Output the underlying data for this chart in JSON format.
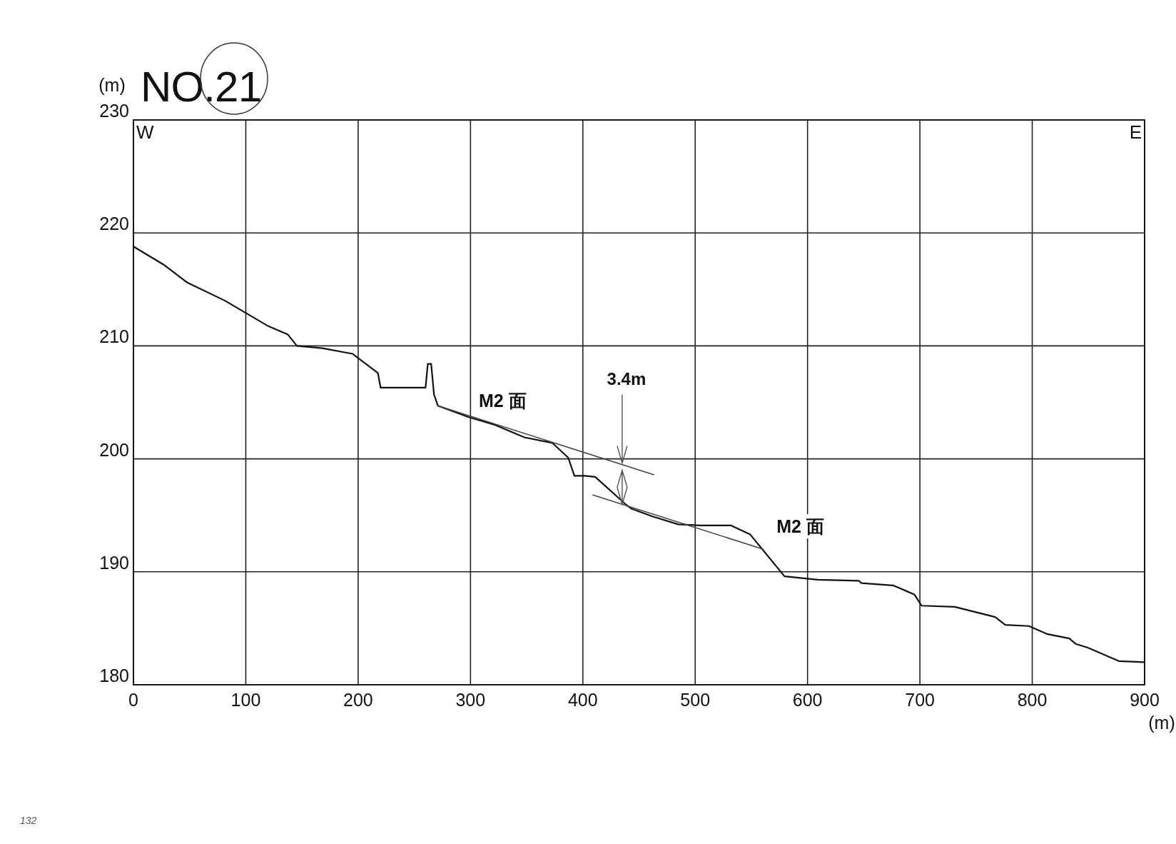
{
  "chart_data": {
    "type": "line",
    "title": "NO.21",
    "ylabel": "(m)",
    "xlabel": "(m)",
    "xlim": [
      0,
      900
    ],
    "ylim": [
      180,
      230
    ],
    "xticks": [
      0,
      100,
      200,
      300,
      400,
      500,
      600,
      700,
      800,
      900
    ],
    "yticks": [
      180,
      190,
      200,
      210,
      220,
      230
    ],
    "grid": true,
    "marker": "none",
    "line_style": "solid",
    "series": [
      {
        "color": "#111111",
        "x": [
          0,
          26.7,
          48,
          81.5,
          119,
          137.5,
          145.5,
          168,
          195,
          217.6,
          220,
          260,
          262,
          265,
          267.5,
          271,
          298,
          322,
          348,
          373,
          387,
          392.5,
          402,
          411,
          439,
          443,
          462,
          485,
          505,
          532,
          549,
          579.5,
          609,
          645.6,
          648,
          676,
          695,
          701.5,
          731,
          767,
          776,
          797,
          813,
          833,
          839,
          849,
          877,
          900
        ],
        "values": [
          218.8,
          217.2,
          215.6,
          214.0,
          211.8,
          211.0,
          210.0,
          209.8,
          209.3,
          207.6,
          206.3,
          206.3,
          208.4,
          208.4,
          205.7,
          204.7,
          203.7,
          203.0,
          201.9,
          201.4,
          200.1,
          198.5,
          198.5,
          198.4,
          195.9,
          195.6,
          194.9,
          194.2,
          194.1,
          194.1,
          193.3,
          189.6,
          189.3,
          189.2,
          189.0,
          188.8,
          188.0,
          187.0,
          186.9,
          186.0,
          185.3,
          185.2,
          184.5,
          184.1,
          183.6,
          183.3,
          182.1,
          182.0
        ]
      },
      {
        "type": "line",
        "color": "#444444",
        "x": [
          271,
          463
        ],
        "values": [
          204.7,
          198.6
        ]
      },
      {
        "type": "line",
        "color": "#444444",
        "x": [
          409,
          560.5
        ],
        "values": [
          196.8,
          192.0
        ]
      }
    ],
    "annotations": [
      "M2 面",
      "M2 面",
      {
        "text": "3.4m",
        "x": 435,
        "y": 199.5
      },
      "W",
      "E",
      "132"
    ]
  }
}
